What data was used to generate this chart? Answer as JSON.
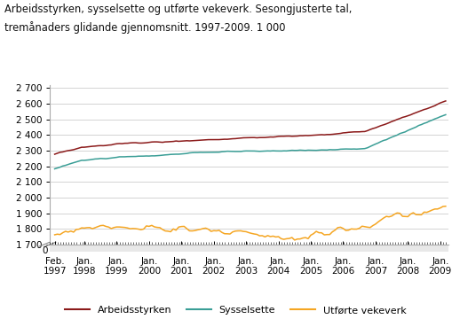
{
  "title_line1": "Arbeidsstyrken, sysselsette og utførte vekeverk. Sesongjusterte tal,",
  "title_line2": "tremånaders glidande gjennomsnitt. 1997-2009. 1 000",
  "ylim_main": [
    1700,
    2700
  ],
  "yticks": [
    1700,
    1800,
    1900,
    2000,
    2100,
    2200,
    2300,
    2400,
    2500,
    2600,
    2700
  ],
  "line_colors": {
    "arbeidsstyrken": "#8B1A1A",
    "sysselsette": "#3a9e96",
    "vekeverk": "#f5a623"
  },
  "legend_labels": [
    "Arbeidsstyrken",
    "Sysselsette",
    "Utførte vekeverk"
  ],
  "background_color": "#ffffff",
  "grid_color": "#cccccc",
  "tick_label_color": "#333333"
}
